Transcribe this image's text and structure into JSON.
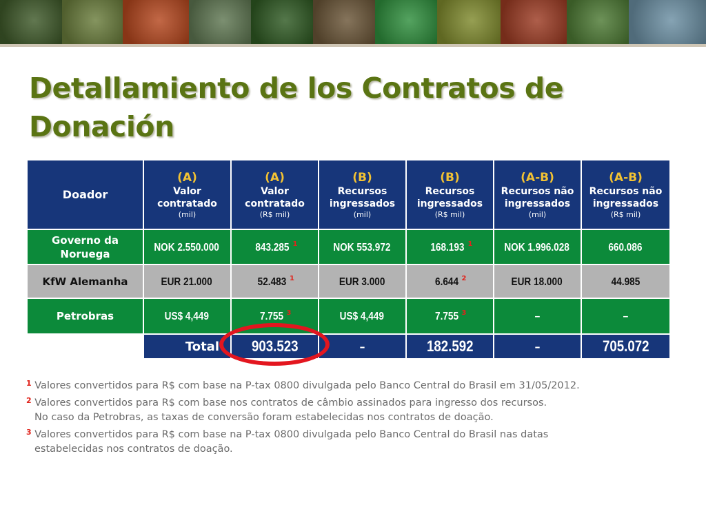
{
  "slide": {
    "title": "Detallamiento de los Contratos de Donación"
  },
  "banner": {
    "photos": [
      {
        "icon": "water-lily-photo",
        "color": "#3f5a2a"
      },
      {
        "icon": "green-lizard-photo",
        "color": "#6a7d3c"
      },
      {
        "icon": "orange-flower-photo",
        "color": "#b5471e"
      },
      {
        "icon": "river-village-photo",
        "color": "#5f7752"
      },
      {
        "icon": "forest-canopy-photo",
        "color": "#2f5a23"
      },
      {
        "icon": "ocelot-photo",
        "color": "#6b5638"
      },
      {
        "icon": "green-frog-photo",
        "color": "#2f8f3d"
      },
      {
        "icon": "yellow-tree-photo",
        "color": "#7f8a2d"
      },
      {
        "icon": "red-monkey-photo",
        "color": "#9c3b23"
      },
      {
        "icon": "green-snake-photo",
        "color": "#4d7a34"
      },
      {
        "icon": "lake-landscape-photo",
        "color": "#6b8fa3"
      }
    ]
  },
  "table": {
    "header": {
      "donor": "Doador",
      "columns": [
        {
          "code": "(A)",
          "line1": "Valor",
          "line2": "contratado",
          "unit": "(mil)"
        },
        {
          "code": "(A)",
          "line1": "Valor",
          "line2": "contratado",
          "unit": "(R$ mil)"
        },
        {
          "code": "(B)",
          "line1": "Recursos",
          "line2": "ingressados",
          "unit": "(mil)"
        },
        {
          "code": "(B)",
          "line1": "Recursos",
          "line2": "ingressados",
          "unit": "(R$ mil)"
        },
        {
          "code": "(A-B)",
          "line1": "Recursos não",
          "line2": "ingressados",
          "unit": "(mil)"
        },
        {
          "code": "(A-B)",
          "line1": "Recursos não",
          "line2": "ingressados",
          "unit": "(R$ mil)"
        }
      ]
    },
    "rows": [
      {
        "donor": "Governo da Noruega",
        "cells": [
          {
            "value": "NOK 2.550.000",
            "fn": ""
          },
          {
            "value": "843.285",
            "fn": "1"
          },
          {
            "value": "NOK 553.972",
            "fn": ""
          },
          {
            "value": "168.193",
            "fn": "1"
          },
          {
            "value": "NOK 1.996.028",
            "fn": ""
          },
          {
            "value": "660.086",
            "fn": ""
          }
        ]
      },
      {
        "donor": "KfW Alemanha",
        "cells": [
          {
            "value": "EUR 21.000",
            "fn": ""
          },
          {
            "value": "52.483",
            "fn": "1"
          },
          {
            "value": "EUR 3.000",
            "fn": ""
          },
          {
            "value": "6.644",
            "fn": "2"
          },
          {
            "value": "EUR 18.000",
            "fn": ""
          },
          {
            "value": "44.985",
            "fn": ""
          }
        ]
      },
      {
        "donor": "Petrobras",
        "cells": [
          {
            "value": "US$ 4,449",
            "fn": ""
          },
          {
            "value": "7.755",
            "fn": "3"
          },
          {
            "value": "US$ 4,449",
            "fn": ""
          },
          {
            "value": "7.755",
            "fn": "3"
          },
          {
            "value": "–",
            "fn": ""
          },
          {
            "value": "–",
            "fn": ""
          }
        ]
      }
    ],
    "total": {
      "label": "Total",
      "cells": [
        "903.523",
        "–",
        "182.592",
        "–",
        "705.072"
      ]
    }
  },
  "highlight": {
    "icon": "red-ellipse-annotation",
    "color": "#e3161f"
  },
  "footnotes": [
    {
      "mark": "1",
      "lines": [
        "Valores convertidos para R$ com base na P-tax 0800 divulgada pelo Banco Central do Brasil em 31/05/2012."
      ]
    },
    {
      "mark": "2",
      "lines": [
        "Valores convertidos para R$ com base nos contratos de câmbio assinados para ingresso dos recursos.",
        "No caso da Petrobras, as taxas de conversão foram estabelecidas nos contratos de doação."
      ]
    },
    {
      "mark": "3",
      "lines": [
        "Valores convertidos para R$ com base na P-tax 0800 divulgada pelo Banco Central do Brasil nas datas",
        "estabelecidas nos contratos de doação."
      ]
    }
  ]
}
